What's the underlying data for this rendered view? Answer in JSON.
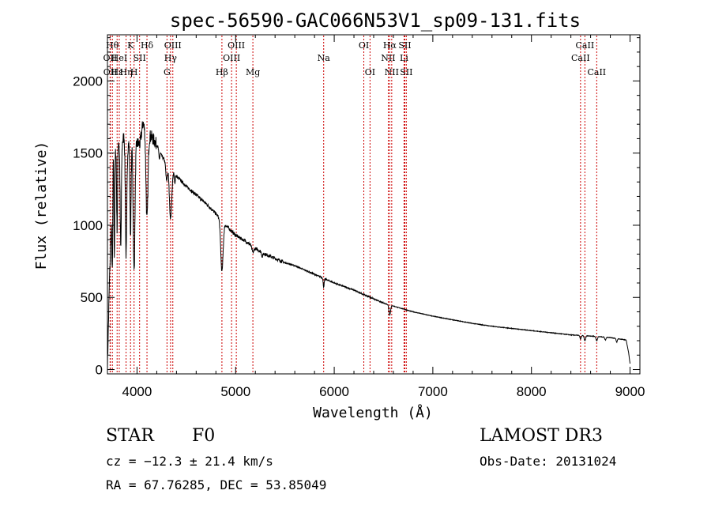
{
  "chart_data": {
    "type": "line",
    "title": "spec-56590-GAC066N53V1_sp09-131.fits",
    "xlabel": "Wavelength (Å)",
    "ylabel": "Flux (relative)",
    "xlim": [
      3700,
      9100
    ],
    "ylim": [
      -30,
      2320
    ],
    "x_ticks": [
      4000,
      5000,
      6000,
      7000,
      8000,
      9000
    ],
    "y_ticks": [
      0,
      500,
      1000,
      1500,
      2000
    ],
    "continuum": [
      [
        3700,
        0
      ],
      [
        3705,
        160
      ],
      [
        3720,
        600
      ],
      [
        3745,
        1150
      ],
      [
        3760,
        1580
      ],
      [
        3775,
        1450
      ],
      [
        3800,
        1650
      ],
      [
        3820,
        1560
      ],
      [
        3840,
        1560
      ],
      [
        3870,
        1620
      ],
      [
        3890,
        1480
      ],
      [
        3910,
        1560
      ],
      [
        3940,
        1600
      ],
      [
        3970,
        1580
      ],
      [
        4000,
        1570
      ],
      [
        4030,
        1560
      ],
      [
        4060,
        1710
      ],
      [
        4100,
        1640
      ],
      [
        4150,
        1610
      ],
      [
        4200,
        1560
      ],
      [
        4250,
        1480
      ],
      [
        4300,
        1430
      ],
      [
        4350,
        1390
      ],
      [
        4400,
        1340
      ],
      [
        4500,
        1270
      ],
      [
        4600,
        1210
      ],
      [
        4700,
        1150
      ],
      [
        4800,
        1080
      ],
      [
        4900,
        1000
      ],
      [
        5000,
        930
      ],
      [
        5100,
        890
      ],
      [
        5200,
        840
      ],
      [
        5300,
        800
      ],
      [
        5400,
        770
      ],
      [
        5500,
        740
      ],
      [
        5600,
        720
      ],
      [
        5700,
        690
      ],
      [
        5800,
        660
      ],
      [
        5900,
        630
      ],
      [
        6000,
        600
      ],
      [
        6100,
        575
      ],
      [
        6200,
        550
      ],
      [
        6300,
        520
      ],
      [
        6400,
        490
      ],
      [
        6500,
        460
      ],
      [
        6600,
        440
      ],
      [
        6700,
        420
      ],
      [
        6800,
        400
      ],
      [
        6900,
        385
      ],
      [
        7000,
        370
      ],
      [
        7200,
        345
      ],
      [
        7400,
        320
      ],
      [
        7600,
        300
      ],
      [
        7800,
        285
      ],
      [
        8000,
        270
      ],
      [
        8200,
        255
      ],
      [
        8400,
        240
      ],
      [
        8600,
        232
      ],
      [
        8800,
        222
      ],
      [
        8960,
        205
      ],
      [
        8985,
        120
      ],
      [
        9000,
        40
      ]
    ],
    "absorption_features": [
      {
        "center": 3750,
        "depth": 600,
        "width": 5
      },
      {
        "center": 3770,
        "depth": 700,
        "width": 4
      },
      {
        "center": 3798,
        "depth": 650,
        "width": 5
      },
      {
        "center": 3835,
        "depth": 720,
        "width": 6
      },
      {
        "center": 3889,
        "depth": 700,
        "width": 7
      },
      {
        "center": 3934,
        "depth": 650,
        "width": 6
      },
      {
        "center": 3970,
        "depth": 900,
        "width": 9
      },
      {
        "center": 4101,
        "depth": 600,
        "width": 10
      },
      {
        "center": 4226,
        "depth": 60,
        "width": 5
      },
      {
        "center": 4300,
        "depth": 120,
        "width": 8
      },
      {
        "center": 4340,
        "depth": 350,
        "width": 12
      },
      {
        "center": 4383,
        "depth": 70,
        "width": 4
      },
      {
        "center": 4861,
        "depth": 350,
        "width": 12
      },
      {
        "center": 5175,
        "depth": 40,
        "width": 10
      },
      {
        "center": 5270,
        "depth": 30,
        "width": 6
      },
      {
        "center": 5893,
        "depth": 60,
        "width": 5
      },
      {
        "center": 6563,
        "depth": 70,
        "width": 8
      },
      {
        "center": 8498,
        "depth": 25,
        "width": 6
      },
      {
        "center": 8542,
        "depth": 35,
        "width": 7
      },
      {
        "center": 8662,
        "depth": 30,
        "width": 7
      },
      {
        "center": 8750,
        "depth": 20,
        "width": 6
      },
      {
        "center": 8865,
        "depth": 25,
        "width": 6
      }
    ],
    "line_markers": [
      {
        "wavelength": 3727,
        "label": "OII",
        "row": 2
      },
      {
        "wavelength": 3729,
        "label": "OII",
        "row": 3
      },
      {
        "wavelength": 3750,
        "label": "Hθ",
        "row": 1
      },
      {
        "wavelength": 3798,
        "label": "Hε",
        "row": 3
      },
      {
        "wavelength": 3820,
        "label": "HeI",
        "row": 2
      },
      {
        "wavelength": 3889,
        "label": "Hη",
        "row": 3
      },
      {
        "wavelength": 3934,
        "label": "K",
        "row": 1
      },
      {
        "wavelength": 3970,
        "label": "H",
        "row": 3
      },
      {
        "wavelength": 4026,
        "label": "SII",
        "row": 2
      },
      {
        "wavelength": 4101,
        "label": "Hδ",
        "row": 1
      },
      {
        "wavelength": 4304,
        "label": "G",
        "row": 3
      },
      {
        "wavelength": 4340,
        "label": "Hγ",
        "row": 2
      },
      {
        "wavelength": 4363,
        "label": "OIII",
        "row": 1
      },
      {
        "wavelength": 4861,
        "label": "Hβ",
        "row": 3
      },
      {
        "wavelength": 4959,
        "label": "OIII",
        "row": 2
      },
      {
        "wavelength": 5007,
        "label": "OIII",
        "row": 1
      },
      {
        "wavelength": 5175,
        "label": "Mg",
        "row": 3
      },
      {
        "wavelength": 5893,
        "label": "Na",
        "row": 2
      },
      {
        "wavelength": 6300,
        "label": "OI",
        "row": 1
      },
      {
        "wavelength": 6363,
        "label": "OI",
        "row": 3
      },
      {
        "wavelength": 6548,
        "label": "NII",
        "row": 2
      },
      {
        "wavelength": 6563,
        "label": "Hα",
        "row": 1
      },
      {
        "wavelength": 6583,
        "label": "NII",
        "row": 3
      },
      {
        "wavelength": 6708,
        "label": "Li",
        "row": 2
      },
      {
        "wavelength": 6716,
        "label": "SII",
        "row": 1
      },
      {
        "wavelength": 6731,
        "label": "SII",
        "row": 3
      },
      {
        "wavelength": 8498,
        "label": "CaII",
        "row": 2
      },
      {
        "wavelength": 8542,
        "label": "CaII",
        "row": 1
      },
      {
        "wavelength": 8662,
        "label": "CaII",
        "row": 3
      }
    ]
  },
  "info": {
    "object_type": "STAR",
    "subclass": "F0",
    "survey": "LAMOST DR3",
    "redshift": "cz = −12.3 ± 21.4 km/s",
    "obs_date": "Obs-Date: 20131024",
    "coords": "RA =  67.76285, DEC =  53.85049"
  },
  "colors": {
    "spectrum": "#000000",
    "marker": "#cc0000",
    "axis": "#000000"
  }
}
